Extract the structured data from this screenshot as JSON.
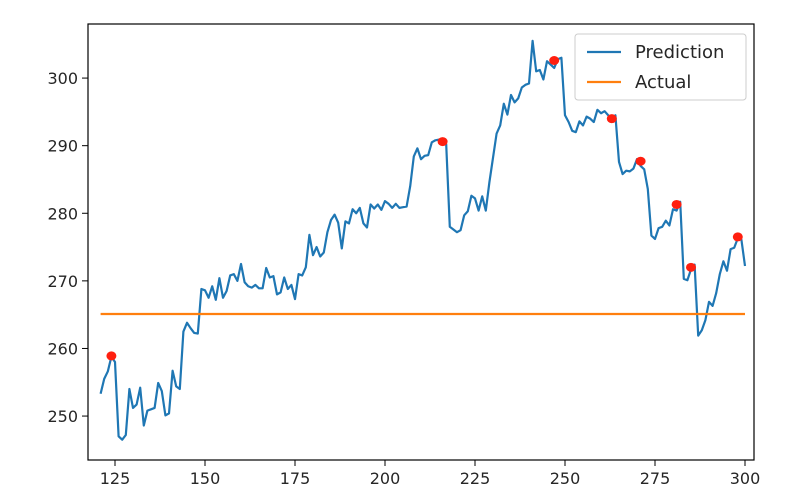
{
  "chart_data": {
    "type": "line",
    "title": "",
    "xlabel": "",
    "ylabel": "",
    "xlim": [
      117.5,
      302.5
    ],
    "ylim": [
      243.5,
      308
    ],
    "x_ticks": [
      125,
      150,
      175,
      200,
      225,
      250,
      275,
      300
    ],
    "y_ticks": [
      250,
      260,
      270,
      280,
      290,
      300
    ],
    "grid": false,
    "legend": {
      "placement": "top-right",
      "entries": [
        "Prediction",
        "Actual"
      ]
    },
    "series": [
      {
        "name": "Prediction",
        "color": "#1f77b4",
        "points": [
          [
            121,
            253.3
          ],
          [
            122,
            255.5
          ],
          [
            123,
            256.6
          ],
          [
            124,
            258.8
          ],
          [
            125,
            258.0
          ],
          [
            126,
            247.0
          ],
          [
            127,
            246.5
          ],
          [
            128,
            247.2
          ],
          [
            129,
            254.0
          ],
          [
            130,
            251.2
          ],
          [
            131,
            251.7
          ],
          [
            132,
            254.2
          ],
          [
            133,
            248.6
          ],
          [
            134,
            250.8
          ],
          [
            135,
            251.0
          ],
          [
            136,
            251.2
          ],
          [
            137,
            254.9
          ],
          [
            138,
            253.7
          ],
          [
            139,
            250.1
          ],
          [
            140,
            250.4
          ],
          [
            141,
            256.7
          ],
          [
            142,
            254.4
          ],
          [
            143,
            254.0
          ],
          [
            144,
            262.5
          ],
          [
            145,
            263.8
          ],
          [
            146,
            263.0
          ],
          [
            147,
            262.3
          ],
          [
            148,
            262.2
          ],
          [
            149,
            268.8
          ],
          [
            150,
            268.6
          ],
          [
            151,
            267.5
          ],
          [
            152,
            269.2
          ],
          [
            153,
            267.2
          ],
          [
            154,
            270.4
          ],
          [
            155,
            267.5
          ],
          [
            156,
            268.5
          ],
          [
            157,
            270.8
          ],
          [
            158,
            271.0
          ],
          [
            159,
            270.0
          ],
          [
            160,
            272.5
          ],
          [
            161,
            269.8
          ],
          [
            162,
            269.2
          ],
          [
            163,
            269.0
          ],
          [
            164,
            269.4
          ],
          [
            165,
            268.9
          ],
          [
            166,
            268.9
          ],
          [
            167,
            271.9
          ],
          [
            168,
            270.5
          ],
          [
            169,
            270.7
          ],
          [
            170,
            268.0
          ],
          [
            171,
            268.3
          ],
          [
            172,
            270.5
          ],
          [
            173,
            268.8
          ],
          [
            174,
            269.4
          ],
          [
            175,
            267.3
          ],
          [
            176,
            271.0
          ],
          [
            177,
            270.8
          ],
          [
            178,
            272.0
          ],
          [
            179,
            276.8
          ],
          [
            180,
            273.8
          ],
          [
            181,
            275.0
          ],
          [
            182,
            273.6
          ],
          [
            183,
            274.2
          ],
          [
            184,
            277.2
          ],
          [
            185,
            279.0
          ],
          [
            186,
            279.8
          ],
          [
            187,
            278.6
          ],
          [
            188,
            274.8
          ],
          [
            189,
            278.8
          ],
          [
            190,
            278.5
          ],
          [
            191,
            280.6
          ],
          [
            192,
            280.0
          ],
          [
            193,
            280.8
          ],
          [
            194,
            278.5
          ],
          [
            195,
            277.9
          ],
          [
            196,
            281.3
          ],
          [
            197,
            280.7
          ],
          [
            198,
            281.3
          ],
          [
            199,
            280.5
          ],
          [
            200,
            281.8
          ],
          [
            201,
            281.4
          ],
          [
            202,
            280.8
          ],
          [
            203,
            281.4
          ],
          [
            204,
            280.8
          ],
          [
            205,
            280.9
          ],
          [
            206,
            281.0
          ],
          [
            207,
            284.0
          ],
          [
            208,
            288.4
          ],
          [
            209,
            289.6
          ],
          [
            210,
            288.0
          ],
          [
            211,
            288.5
          ],
          [
            212,
            288.6
          ],
          [
            213,
            290.5
          ],
          [
            214,
            290.8
          ],
          [
            215,
            290.9
          ],
          [
            216,
            290.5
          ],
          [
            217,
            290.2
          ],
          [
            218,
            278.0
          ],
          [
            219,
            277.6
          ],
          [
            220,
            277.2
          ],
          [
            221,
            277.5
          ],
          [
            222,
            279.7
          ],
          [
            223,
            280.3
          ],
          [
            224,
            282.6
          ],
          [
            225,
            282.2
          ],
          [
            226,
            280.4
          ],
          [
            227,
            282.5
          ],
          [
            228,
            280.4
          ],
          [
            229,
            284.6
          ],
          [
            230,
            288.2
          ],
          [
            231,
            291.8
          ],
          [
            232,
            293.0
          ],
          [
            233,
            296.2
          ],
          [
            234,
            294.6
          ],
          [
            235,
            297.5
          ],
          [
            236,
            296.4
          ],
          [
            237,
            297.0
          ],
          [
            238,
            298.6
          ],
          [
            239,
            299.0
          ],
          [
            240,
            299.2
          ],
          [
            241,
            305.5
          ],
          [
            242,
            301.0
          ],
          [
            243,
            301.2
          ],
          [
            244,
            299.8
          ],
          [
            245,
            302.5
          ],
          [
            246,
            302.0
          ],
          [
            247,
            301.5
          ],
          [
            248,
            302.8
          ],
          [
            249,
            303.0
          ],
          [
            250,
            294.5
          ],
          [
            251,
            293.5
          ],
          [
            252,
            292.2
          ],
          [
            253,
            292.0
          ],
          [
            254,
            293.6
          ],
          [
            255,
            293.0
          ],
          [
            256,
            294.3
          ],
          [
            257,
            294.0
          ],
          [
            258,
            293.5
          ],
          [
            259,
            295.3
          ],
          [
            260,
            294.8
          ],
          [
            261,
            295.1
          ],
          [
            262,
            294.5
          ],
          [
            263,
            293.5
          ],
          [
            264,
            294.5
          ],
          [
            265,
            287.6
          ],
          [
            266,
            285.8
          ],
          [
            267,
            286.3
          ],
          [
            268,
            286.2
          ],
          [
            269,
            286.6
          ],
          [
            270,
            288.0
          ],
          [
            271,
            287.0
          ],
          [
            272,
            286.5
          ],
          [
            273,
            283.6
          ],
          [
            274,
            276.7
          ],
          [
            275,
            276.2
          ],
          [
            276,
            277.8
          ],
          [
            277,
            278.0
          ],
          [
            278,
            278.9
          ],
          [
            279,
            278.2
          ],
          [
            280,
            280.6
          ],
          [
            281,
            280.4
          ],
          [
            282,
            281.7
          ],
          [
            283,
            270.3
          ],
          [
            284,
            270.1
          ],
          [
            285,
            271.7
          ],
          [
            286,
            272.4
          ],
          [
            287,
            261.9
          ],
          [
            288,
            262.7
          ],
          [
            289,
            264.2
          ],
          [
            290,
            266.9
          ],
          [
            291,
            266.3
          ],
          [
            292,
            268.2
          ],
          [
            293,
            271.0
          ],
          [
            294,
            272.9
          ],
          [
            295,
            271.5
          ],
          [
            296,
            274.7
          ],
          [
            297,
            274.9
          ],
          [
            298,
            276.3
          ],
          [
            299,
            276.1
          ],
          [
            300,
            272.2
          ]
        ]
      },
      {
        "name": "Actual",
        "color": "#ff7f0e",
        "points": [
          [
            121,
            265.1
          ],
          [
            300,
            265.1
          ]
        ]
      }
    ],
    "markers": {
      "color": "#ff1f0f",
      "points": [
        [
          124,
          258.9
        ],
        [
          216,
          290.6
        ],
        [
          247,
          302.6
        ],
        [
          263,
          294.0
        ],
        [
          271,
          287.7
        ],
        [
          281,
          281.3
        ],
        [
          285,
          272.0
        ],
        [
          298,
          276.5
        ]
      ]
    }
  }
}
